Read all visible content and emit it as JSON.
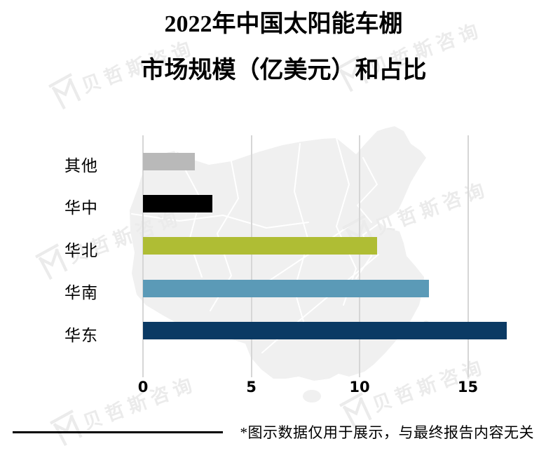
{
  "title": {
    "line1": "2022年中国太阳能车棚",
    "line2": "市场规模（亿美元）和占比"
  },
  "footer": {
    "note": "*图示数据仅用于展示，与最终报告内容无关"
  },
  "watermark": {
    "text": "贝哲斯咨询"
  },
  "colors": {
    "gridline": "#d6d6d6",
    "map_fill": "#f0f0f0",
    "map_border": "#ffffff",
    "watermark": "#ebebeb"
  },
  "chart_data": {
    "type": "bar",
    "orientation": "horizontal",
    "title": "2022年中国太阳能车棚市场规模（亿美元）和占比",
    "unit": "亿美元",
    "categories": [
      "其他",
      "华中",
      "华北",
      "华南",
      "华东"
    ],
    "values": [
      2.4,
      3.2,
      10.8,
      13.2,
      16.8
    ],
    "bar_colors": [
      "#b9b9b9",
      "#000000",
      "#afbd34",
      "#5b9ab7",
      "#0b3a64"
    ],
    "xticks": [
      0,
      5,
      10,
      15
    ],
    "xlim": [
      0,
      17.5
    ],
    "xlabel": "",
    "ylabel": "",
    "grid": "vertical-major",
    "legend": "none",
    "background": "china-map-silhouette-watermark"
  }
}
